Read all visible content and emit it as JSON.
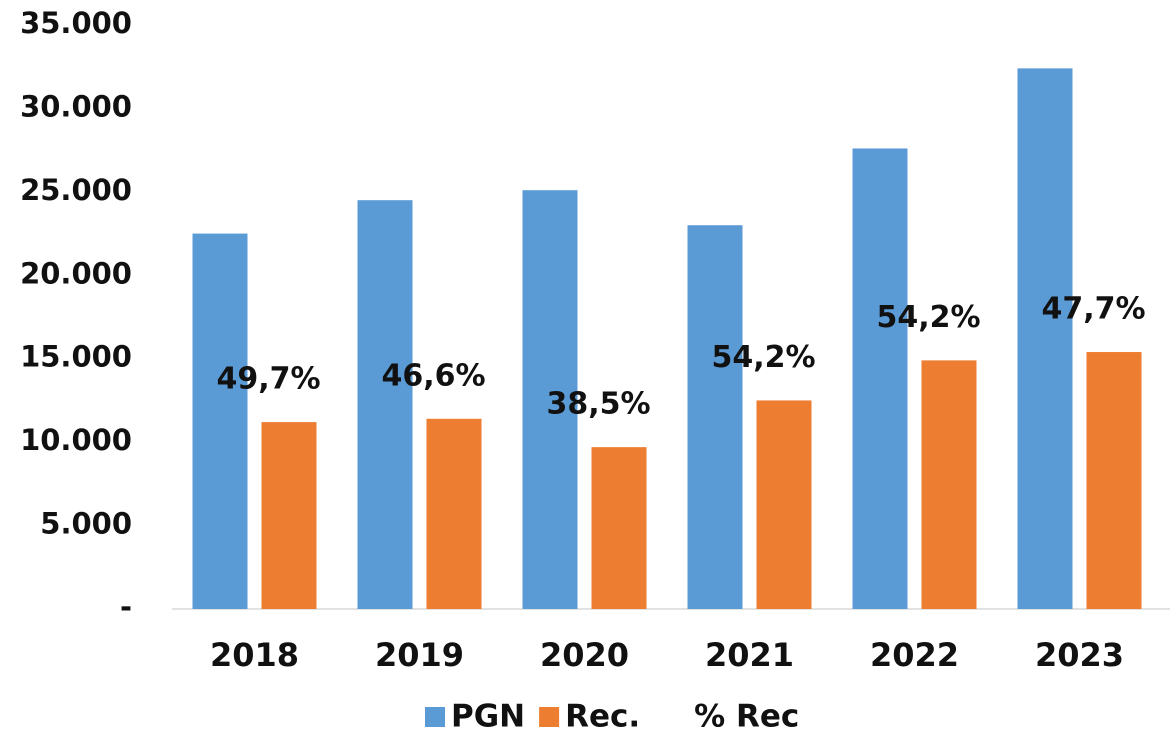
{
  "chart_data": {
    "type": "bar",
    "categories": [
      "2018",
      "2019",
      "2020",
      "2021",
      "2022",
      "2023"
    ],
    "series": [
      {
        "name": "PGN",
        "color": "#5b9bd5",
        "values": [
          22500,
          24500,
          25100,
          23000,
          27600,
          32400
        ]
      },
      {
        "name": "Rec.",
        "color": "#ed7d31",
        "values": [
          11200,
          11400,
          9700,
          12500,
          14900,
          15400
        ]
      },
      {
        "name": "% Rec",
        "values": [
          49.7,
          46.6,
          38.5,
          54.2,
          54.2,
          47.7
        ],
        "value_labels": [
          "49,7%",
          "46,6%",
          "38,5%",
          "54,2%",
          "54,2%",
          "47,7%"
        ]
      }
    ],
    "ylim": [
      0,
      35000
    ],
    "yticks": [
      {
        "value": 0,
        "label": "-"
      },
      {
        "value": 5000,
        "label": "5.000"
      },
      {
        "value": 10000,
        "label": "10.000"
      },
      {
        "value": 15000,
        "label": "15.000"
      },
      {
        "value": 20000,
        "label": "20.000"
      },
      {
        "value": 25000,
        "label": "25.000"
      },
      {
        "value": 30000,
        "label": "30.000"
      },
      {
        "value": 35000,
        "label": "35.000"
      }
    ],
    "grid": false
  }
}
